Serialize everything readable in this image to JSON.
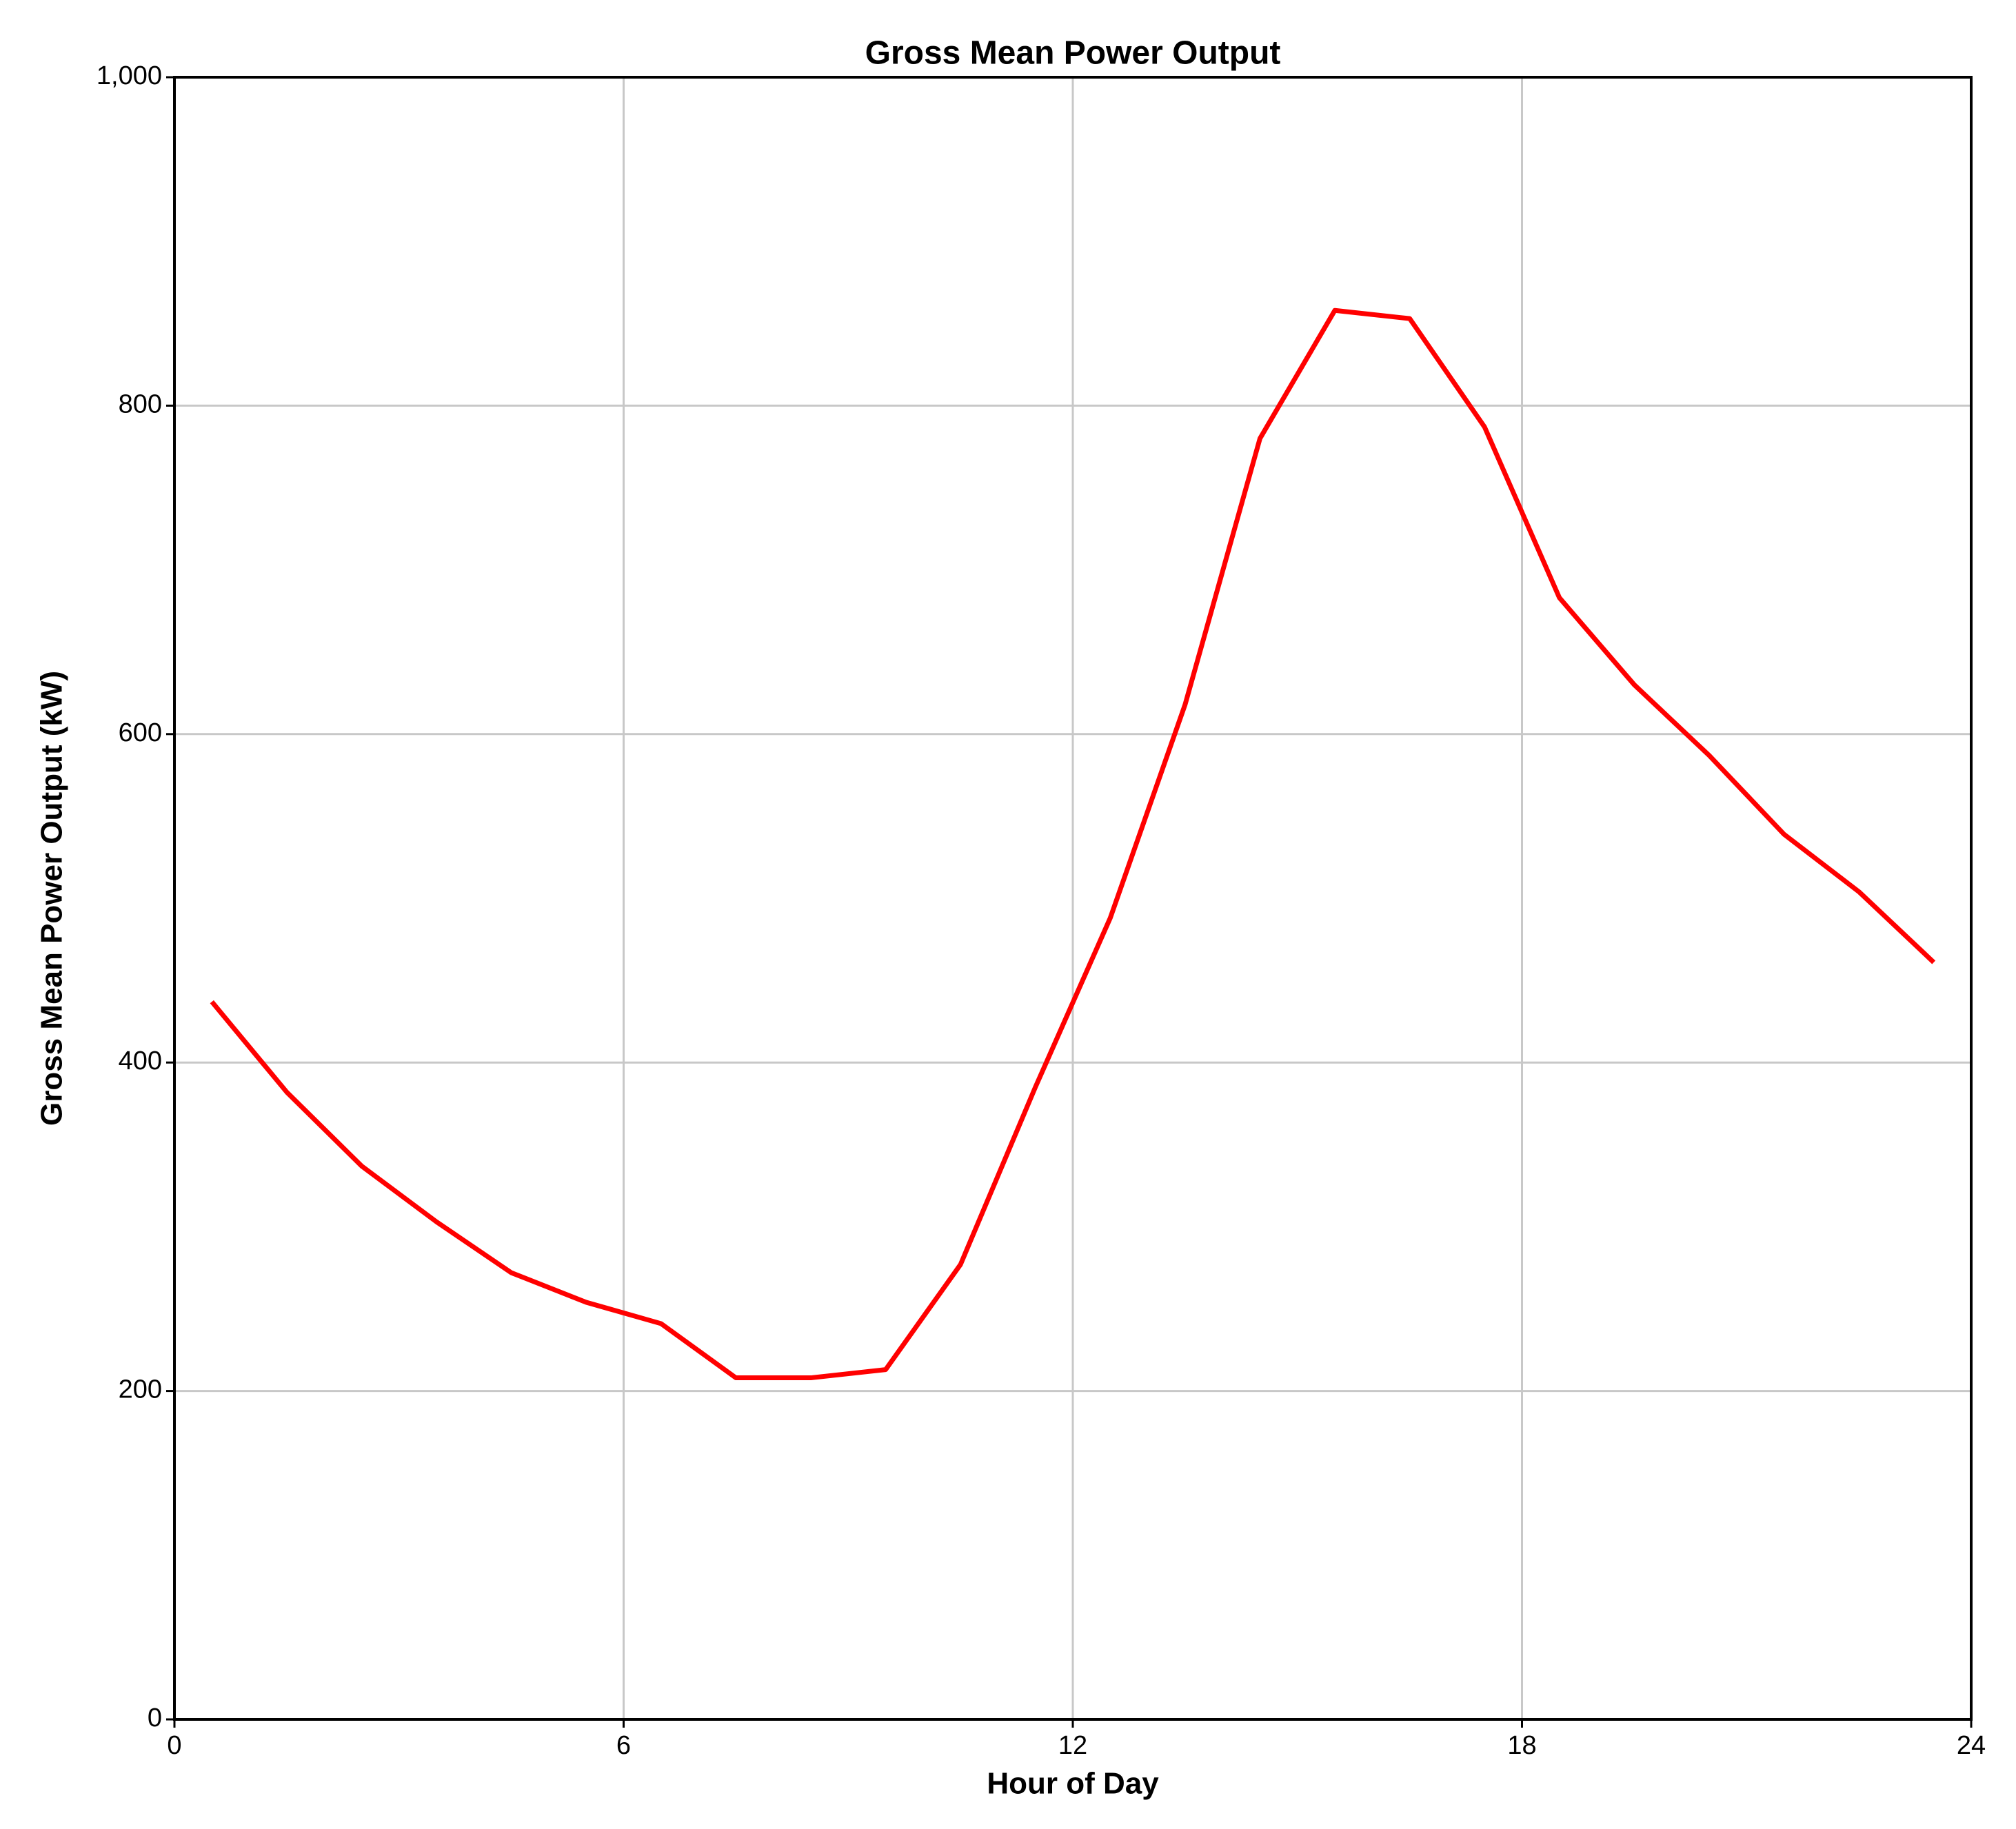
{
  "chart_data": {
    "type": "line",
    "title": "Gross Mean Power Output",
    "x_label": "Hour of Day",
    "y_label": "Gross Mean Power Output (kW)",
    "x": [
      0.5,
      1.5,
      2.5,
      3.5,
      4.5,
      5.5,
      6.5,
      7.5,
      8.5,
      9.5,
      10.5,
      11.5,
      12.5,
      13.5,
      14.5,
      15.5,
      16.5,
      17.5,
      18.5,
      19.5,
      20.5,
      21.5,
      22.5,
      23.5
    ],
    "series": [
      {
        "name": "Gross Mean Power Output",
        "color": "#ff0000",
        "values": [
          437,
          382,
          337,
          303,
          272,
          254,
          241,
          208,
          208,
          213,
          277,
          385,
          488,
          618,
          780,
          858,
          853,
          787,
          683,
          630,
          587,
          539,
          504,
          461
        ]
      }
    ],
    "xlim": [
      0,
      24
    ],
    "xticks": [
      0,
      6,
      12,
      18,
      24
    ],
    "ylim": [
      0,
      1000
    ],
    "yticks": [
      0,
      200,
      400,
      600,
      800,
      {
        "value": 1000,
        "label": "1,000"
      }
    ],
    "grid": true
  }
}
